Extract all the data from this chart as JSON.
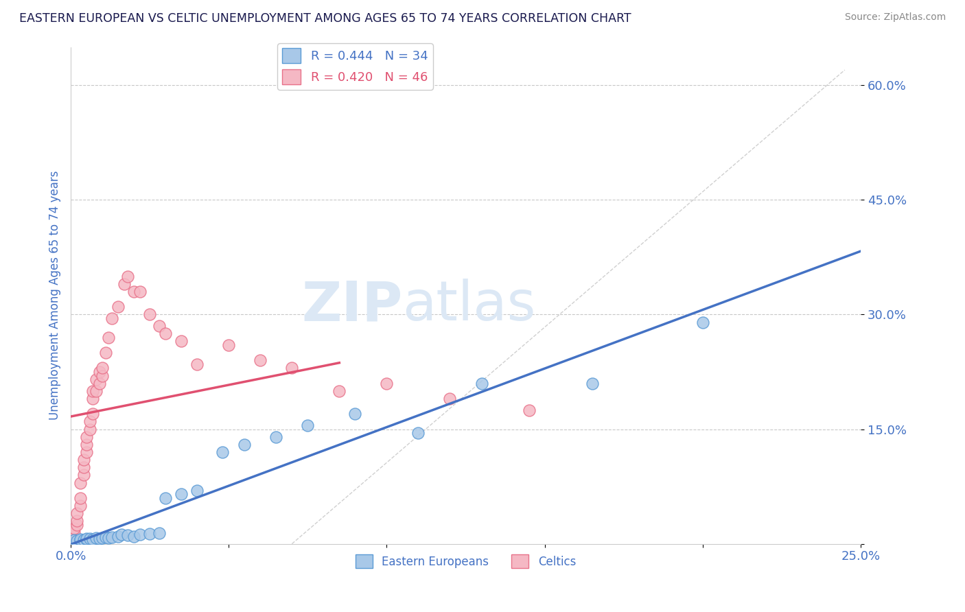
{
  "title": "EASTERN EUROPEAN VS CELTIC UNEMPLOYMENT AMONG AGES 65 TO 74 YEARS CORRELATION CHART",
  "source": "Source: ZipAtlas.com",
  "ylabel": "Unemployment Among Ages 65 to 74 years",
  "xlim": [
    0.0,
    0.25
  ],
  "ylim": [
    0.0,
    0.65
  ],
  "y_ticks": [
    0.0,
    0.15,
    0.3,
    0.45,
    0.6
  ],
  "y_tick_labels": [
    "",
    "15.0%",
    "30.0%",
    "45.0%",
    "60.0%"
  ],
  "blue_scatter_color": "#a8c8e8",
  "blue_edge_color": "#5b9bd5",
  "pink_scatter_color": "#f5b8c4",
  "pink_edge_color": "#e8728a",
  "blue_line_color": "#4472c4",
  "pink_line_color": "#e05070",
  "diag_color": "#d0d0d0",
  "title_color": "#1a1a4e",
  "axis_label_color": "#4472c4",
  "tick_color": "#4472c4",
  "grid_color": "#c8c8c8",
  "watermark_color": "#dce8f5",
  "legend_r_blue": "R = 0.444",
  "legend_n_blue": "N = 34",
  "legend_r_pink": "R = 0.420",
  "legend_n_pink": "N = 46",
  "eastern_european_x": [
    0.001,
    0.002,
    0.003,
    0.003,
    0.004,
    0.005,
    0.005,
    0.006,
    0.007,
    0.008,
    0.009,
    0.01,
    0.011,
    0.012,
    0.013,
    0.015,
    0.016,
    0.018,
    0.02,
    0.022,
    0.025,
    0.028,
    0.03,
    0.035,
    0.04,
    0.048,
    0.055,
    0.065,
    0.075,
    0.09,
    0.11,
    0.13,
    0.165,
    0.2
  ],
  "eastern_european_y": [
    0.005,
    0.004,
    0.005,
    0.006,
    0.005,
    0.006,
    0.007,
    0.007,
    0.006,
    0.008,
    0.007,
    0.008,
    0.009,
    0.008,
    0.009,
    0.01,
    0.012,
    0.011,
    0.01,
    0.012,
    0.013,
    0.014,
    0.06,
    0.065,
    0.07,
    0.12,
    0.13,
    0.14,
    0.155,
    0.17,
    0.145,
    0.21,
    0.21,
    0.29
  ],
  "celtic_x": [
    0.001,
    0.001,
    0.001,
    0.002,
    0.002,
    0.002,
    0.003,
    0.003,
    0.003,
    0.004,
    0.004,
    0.004,
    0.005,
    0.005,
    0.005,
    0.006,
    0.006,
    0.007,
    0.007,
    0.007,
    0.008,
    0.008,
    0.009,
    0.009,
    0.01,
    0.01,
    0.011,
    0.012,
    0.013,
    0.015,
    0.017,
    0.018,
    0.02,
    0.022,
    0.025,
    0.028,
    0.03,
    0.035,
    0.04,
    0.05,
    0.06,
    0.07,
    0.085,
    0.1,
    0.12,
    0.145
  ],
  "celtic_y": [
    0.01,
    0.015,
    0.02,
    0.025,
    0.03,
    0.04,
    0.05,
    0.06,
    0.08,
    0.09,
    0.1,
    0.11,
    0.12,
    0.13,
    0.14,
    0.15,
    0.16,
    0.17,
    0.19,
    0.2,
    0.2,
    0.215,
    0.21,
    0.225,
    0.22,
    0.23,
    0.25,
    0.27,
    0.295,
    0.31,
    0.34,
    0.35,
    0.33,
    0.33,
    0.3,
    0.285,
    0.275,
    0.265,
    0.235,
    0.26,
    0.24,
    0.23,
    0.2,
    0.21,
    0.19,
    0.175
  ],
  "blue_line_x0": 0.0,
  "blue_line_x1": 0.25,
  "pink_line_x0": 0.0,
  "pink_line_x1": 0.085
}
